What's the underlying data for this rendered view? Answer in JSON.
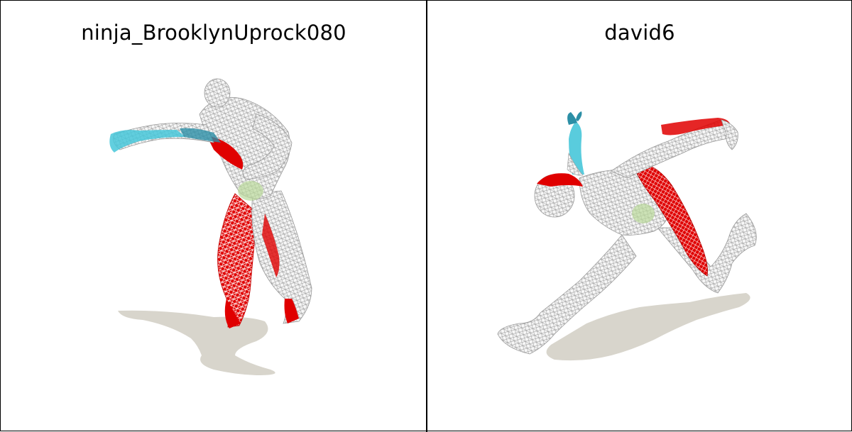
{
  "panels": [
    {
      "title": "ninja_BrooklynUprock080"
    },
    {
      "title": "david6"
    }
  ],
  "colors": {
    "background": "#ffffff",
    "border": "#000000",
    "wireframe": "#bfbfbf",
    "muscle_red": "#e00000",
    "arm_cyan": "#47c7d9",
    "shadow": "#d8d5cc",
    "core_green": "#b9d89a"
  }
}
